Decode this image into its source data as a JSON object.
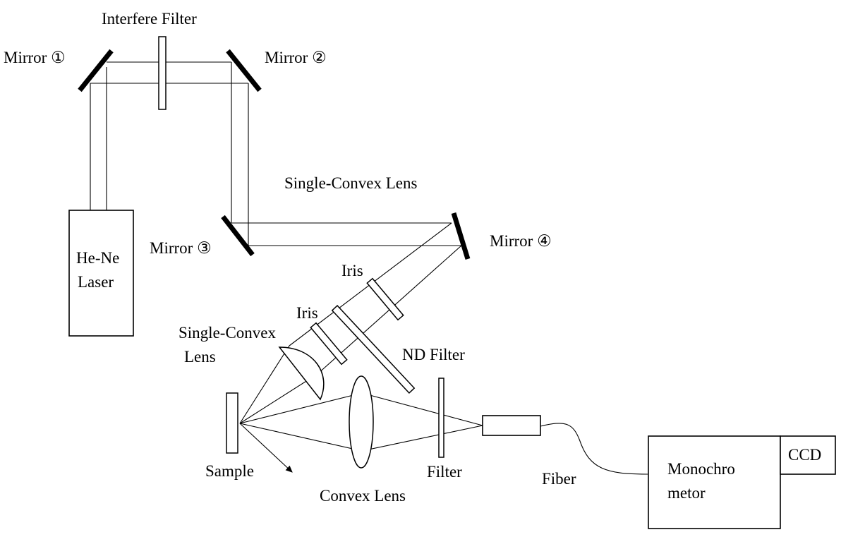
{
  "labels": {
    "interfere_filter": "Interfere Filter",
    "mirror1": "Mirror ①",
    "mirror2": "Mirror ②",
    "mirror3": "Mirror ③",
    "mirror4": "Mirror ④",
    "laser_line1": "He-Ne",
    "laser_line2": "Laser",
    "single_convex_top": "Single-Convex Lens",
    "iris_upper": "Iris",
    "iris_lower": "Iris",
    "single_convex_left_line1": "Single-Convex",
    "single_convex_left_line2": "Lens",
    "nd_filter": "ND Filter",
    "sample": "Sample",
    "convex_lens": "Convex Lens",
    "filter": "Filter",
    "fiber": "Fiber",
    "monochromator_line1": "Monochro",
    "monochromator_line2": "metor",
    "ccd": "CCD"
  }
}
